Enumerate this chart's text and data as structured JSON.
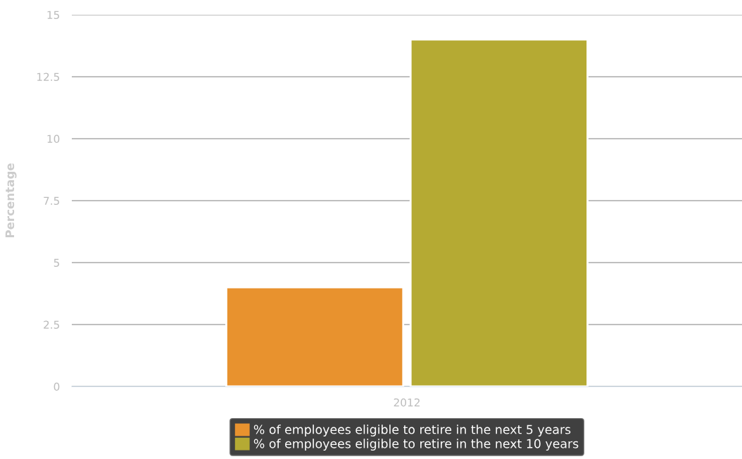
{
  "chart_data": {
    "type": "bar",
    "ylabel": "Percentage",
    "categories": [
      "2012"
    ],
    "series": [
      {
        "name": "% of employees eligible to retire in the next 5 years",
        "color": "#e8922e",
        "values": [
          4
        ]
      },
      {
        "name": "% of employees eligible to retire in the next 10 years",
        "color": "#b5aa33",
        "values": [
          14
        ]
      }
    ],
    "ylim": [
      0,
      15
    ],
    "yticks": [
      0,
      2.5,
      5,
      7.5,
      10,
      12.5,
      15
    ],
    "grid": "y",
    "legend": "bottom"
  }
}
